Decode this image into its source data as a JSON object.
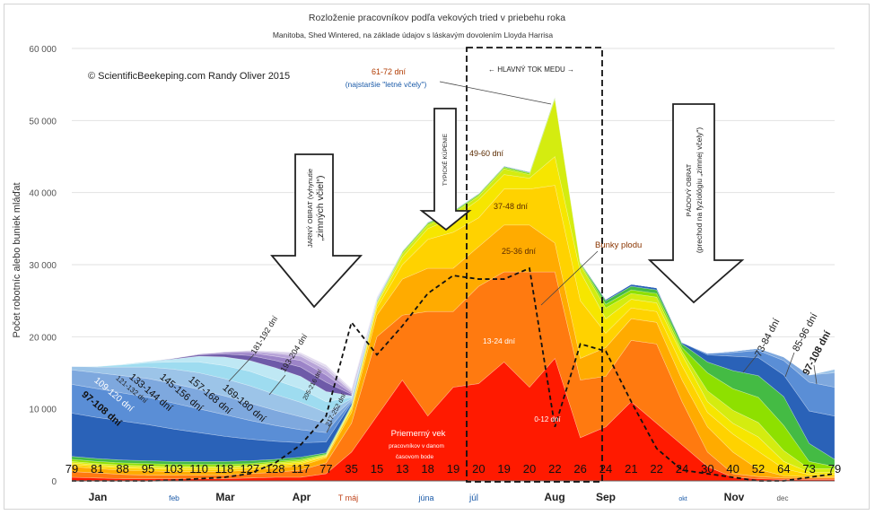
{
  "title": "Rozloženie pracovníkov podľa vekových tried v priebehu roka",
  "subtitle": "Manitoba, Shed Wintered, na základe údajov s láskavým dovolením Lloyda Harrisa",
  "copyright": "© ScientificBeekeping.com Randy Oliver 2015",
  "chart_data": {
    "type": "area",
    "ylabel": "Počet robotníc alebo buniek mláďat",
    "ylim": [
      0,
      60000
    ],
    "yticks": [
      "0",
      "10 000",
      "20 000",
      "30 000",
      "40 000",
      "50 000",
      "60 000"
    ],
    "months": [
      "Jan",
      "feb",
      "Mar",
      "Apr",
      "T máj",
      "júna",
      "júl",
      "Aug",
      "Sep",
      "okt",
      "Nov",
      "dec"
    ],
    "mean_age_labels": [
      "79",
      "81",
      "88",
      "95",
      "103",
      "110",
      "118",
      "127",
      "128",
      "117",
      "77",
      "35",
      "15",
      "13",
      "18",
      "19",
      "20",
      "19",
      "20",
      "22",
      "26",
      "24",
      "21",
      "22",
      "24",
      "30",
      "40",
      "52",
      "64",
      "73",
      "79"
    ],
    "x": [
      0,
      1,
      2,
      3,
      4,
      5,
      6,
      7,
      8,
      9,
      10,
      11,
      12,
      13,
      14,
      15,
      16,
      17,
      18,
      19,
      20,
      21,
      22,
      23,
      24,
      25,
      26,
      27,
      28,
      29,
      30
    ],
    "series": [
      {
        "name": "0-12 dní",
        "color": "#ff1a00",
        "values": [
          500,
          400,
          300,
          300,
          300,
          300,
          300,
          400,
          500,
          500,
          1000,
          4000,
          9000,
          14000,
          9000,
          13000,
          13500,
          16500,
          13000,
          17000,
          6000,
          7500,
          11000,
          8000,
          5000,
          2000,
          500,
          300,
          200,
          200,
          200
        ]
      },
      {
        "name": "13-24 dní",
        "color": "#ff7a10",
        "values": [
          800,
          700,
          600,
          500,
          500,
          500,
          500,
          600,
          700,
          1000,
          1500,
          4000,
          11000,
          9000,
          14500,
          10500,
          13500,
          12500,
          16000,
          12000,
          8000,
          7000,
          8500,
          11000,
          6000,
          2000,
          500,
          300,
          200,
          200,
          200
        ]
      },
      {
        "name": "25-36 dní",
        "color": "#ffab00",
        "values": [
          700,
          600,
          600,
          600,
          500,
          500,
          500,
          500,
          600,
          600,
          700,
          1500,
          3000,
          5000,
          6000,
          6000,
          5500,
          6500,
          6500,
          4000,
          3000,
          4000,
          3000,
          3000,
          3000,
          3500,
          3000,
          1000,
          300,
          200,
          200
        ]
      },
      {
        "name": "37-48 dní",
        "color": "#ffd200",
        "values": [
          300,
          300,
          300,
          300,
          300,
          300,
          300,
          300,
          300,
          300,
          200,
          500,
          1000,
          2000,
          4000,
          5000,
          4000,
          5000,
          5000,
          8000,
          8000,
          2000,
          1500,
          1500,
          2000,
          2000,
          2500,
          2500,
          1000,
          300,
          300
        ]
      },
      {
        "name": "49-60 dní",
        "color": "#f6e600",
        "values": [
          200,
          200,
          200,
          200,
          200,
          200,
          200,
          200,
          200,
          200,
          100,
          200,
          500,
          1000,
          1500,
          2000,
          2500,
          2000,
          1500,
          4000,
          4000,
          2000,
          1200,
          1200,
          1500,
          1500,
          1500,
          2000,
          1000,
          300,
          300
        ]
      },
      {
        "name": "61-72 dní",
        "color": "#d4ec10",
        "values": [
          200,
          200,
          200,
          200,
          200,
          200,
          200,
          200,
          200,
          200,
          100,
          100,
          200,
          500,
          500,
          600,
          500,
          800,
          500,
          8000,
          1000,
          1500,
          800,
          800,
          500,
          1500,
          1800,
          2000,
          1500,
          500,
          500
        ]
      },
      {
        "name": "73-84 dní",
        "color": "#8ee000",
        "values": [
          300,
          300,
          300,
          300,
          300,
          300,
          300,
          200,
          200,
          200,
          100,
          100,
          100,
          200,
          200,
          200,
          200,
          200,
          200,
          200,
          200,
          500,
          500,
          500,
          500,
          2500,
          3000,
          3500,
          3500,
          1000,
          300
        ]
      },
      {
        "name": "85-96 dní",
        "color": "#44bb44",
        "values": [
          400,
          400,
          400,
          400,
          400,
          400,
          400,
          400,
          300,
          300,
          200,
          100,
          100,
          100,
          100,
          100,
          100,
          100,
          100,
          100,
          100,
          500,
          500,
          500,
          500,
          1500,
          2500,
          3000,
          4000,
          2500,
          1000
        ]
      },
      {
        "name": "97-108 dní",
        "color": "#2a62b8",
        "values": [
          6000,
          5700,
          5400,
          5000,
          4500,
          4000,
          3500,
          3000,
          2500,
          2000,
          1500,
          300,
          100,
          100,
          100,
          100,
          100,
          100,
          100,
          100,
          100,
          200,
          300,
          300,
          200,
          1000,
          2000,
          2500,
          3000,
          4500,
          6000
        ]
      },
      {
        "name": "109-120 dní",
        "color": "#5a8ed6",
        "values": [
          4000,
          4000,
          3900,
          3800,
          3600,
          3300,
          3000,
          2600,
          2200,
          1800,
          1300,
          200,
          50,
          0,
          0,
          0,
          0,
          0,
          0,
          0,
          0,
          0,
          0,
          0,
          0,
          200,
          500,
          1000,
          2000,
          4000,
          4000
        ]
      },
      {
        "name": "121-132 dní",
        "color": "#7ea8de",
        "values": [
          2000,
          2200,
          2400,
          2600,
          2700,
          2700,
          2600,
          2400,
          2100,
          1800,
          1300,
          200,
          50,
          0,
          0,
          0,
          0,
          0,
          0,
          0,
          0,
          0,
          0,
          0,
          0,
          0,
          200,
          300,
          500,
          1000,
          2000
        ]
      },
      {
        "name": "133-144 dní",
        "color": "#9cc4e8",
        "values": [
          500,
          800,
          1200,
          1600,
          2000,
          2300,
          2400,
          2400,
          2200,
          2000,
          1500,
          200,
          50,
          0,
          0,
          0,
          0,
          0,
          0,
          0,
          0,
          0,
          0,
          0,
          0,
          0,
          0,
          0,
          0,
          0,
          500
        ]
      },
      {
        "name": "145-156 dní",
        "color": "#9edcf0",
        "values": [
          0,
          100,
          300,
          600,
          1000,
          1500,
          1800,
          2000,
          2000,
          1900,
          1500,
          200,
          50,
          0,
          0,
          0,
          0,
          0,
          0,
          0,
          0,
          0,
          0,
          0,
          0,
          0,
          0,
          0,
          0,
          0,
          0
        ]
      },
      {
        "name": "157-168 dní",
        "color": "#bfe8f4",
        "values": [
          0,
          0,
          100,
          200,
          400,
          800,
          1200,
          1500,
          1700,
          1700,
          1400,
          200,
          50,
          0,
          0,
          0,
          0,
          0,
          0,
          0,
          0,
          0,
          0,
          0,
          0,
          0,
          0,
          0,
          0,
          0,
          0
        ]
      },
      {
        "name": "169-180 dní",
        "color": "#6e5aa8",
        "values": [
          0,
          0,
          0,
          0,
          100,
          200,
          400,
          700,
          1000,
          1300,
          1300,
          200,
          50,
          0,
          0,
          0,
          0,
          0,
          0,
          0,
          0,
          0,
          0,
          0,
          0,
          0,
          0,
          0,
          0,
          0,
          0
        ]
      },
      {
        "name": "181-192 dní",
        "color": "#9c84c8",
        "values": [
          0,
          0,
          0,
          0,
          0,
          100,
          200,
          400,
          600,
          900,
          1000,
          200,
          50,
          0,
          0,
          0,
          0,
          0,
          0,
          0,
          0,
          0,
          0,
          0,
          0,
          0,
          0,
          0,
          0,
          0,
          0
        ]
      },
      {
        "name": "193-204 dní",
        "color": "#b8a4d8",
        "values": [
          0,
          0,
          0,
          0,
          0,
          0,
          100,
          200,
          400,
          600,
          700,
          200,
          50,
          0,
          0,
          0,
          0,
          0,
          0,
          0,
          0,
          0,
          0,
          0,
          0,
          0,
          0,
          0,
          0,
          0,
          0
        ]
      },
      {
        "name": "205-216 dní",
        "color": "#d0c4e4",
        "values": [
          0,
          0,
          0,
          0,
          0,
          0,
          0,
          100,
          200,
          300,
          400,
          200,
          50,
          0,
          0,
          0,
          0,
          0,
          0,
          0,
          0,
          0,
          0,
          0,
          0,
          0,
          0,
          0,
          0,
          0,
          0
        ]
      },
      {
        "name": "217-252 dní",
        "color": "#e4dcf0",
        "values": [
          0,
          0,
          0,
          0,
          0,
          0,
          0,
          0,
          100,
          200,
          300,
          200,
          50,
          0,
          0,
          0,
          0,
          0,
          0,
          0,
          0,
          0,
          0,
          0,
          0,
          0,
          0,
          0,
          0,
          0,
          0
        ]
      }
    ],
    "brood": {
      "name": "Bunky plodu",
      "values": [
        0,
        0,
        0,
        0,
        100,
        300,
        500,
        1000,
        2500,
        5000,
        9000,
        22000,
        17500,
        21500,
        26000,
        28500,
        28000,
        28000,
        29500,
        7500,
        19000,
        18000,
        11000,
        4500,
        1500,
        1000,
        500,
        0,
        0,
        500,
        1000
      ]
    },
    "annotations": {
      "spring_turnover": "JARNÝ OBRAT (vyhynutie „zimných včiel“)",
      "swarming": "TYPICKÉ KÚPENIE",
      "main_flow": "← HLAVNÝ TOK MEDU →",
      "fall_turnover": "PÁDOVÝ OBRAT (prechod na fyziológiu „zimnej včely“)",
      "early_summer_bees": "(najstaršie \"letné včely\")",
      "mean_age": "Priemerný vek",
      "mean_age_2": "pracovníkov v danom",
      "mean_age_3": "časovom bode",
      "brood_label": "Bunky plodu"
    }
  }
}
